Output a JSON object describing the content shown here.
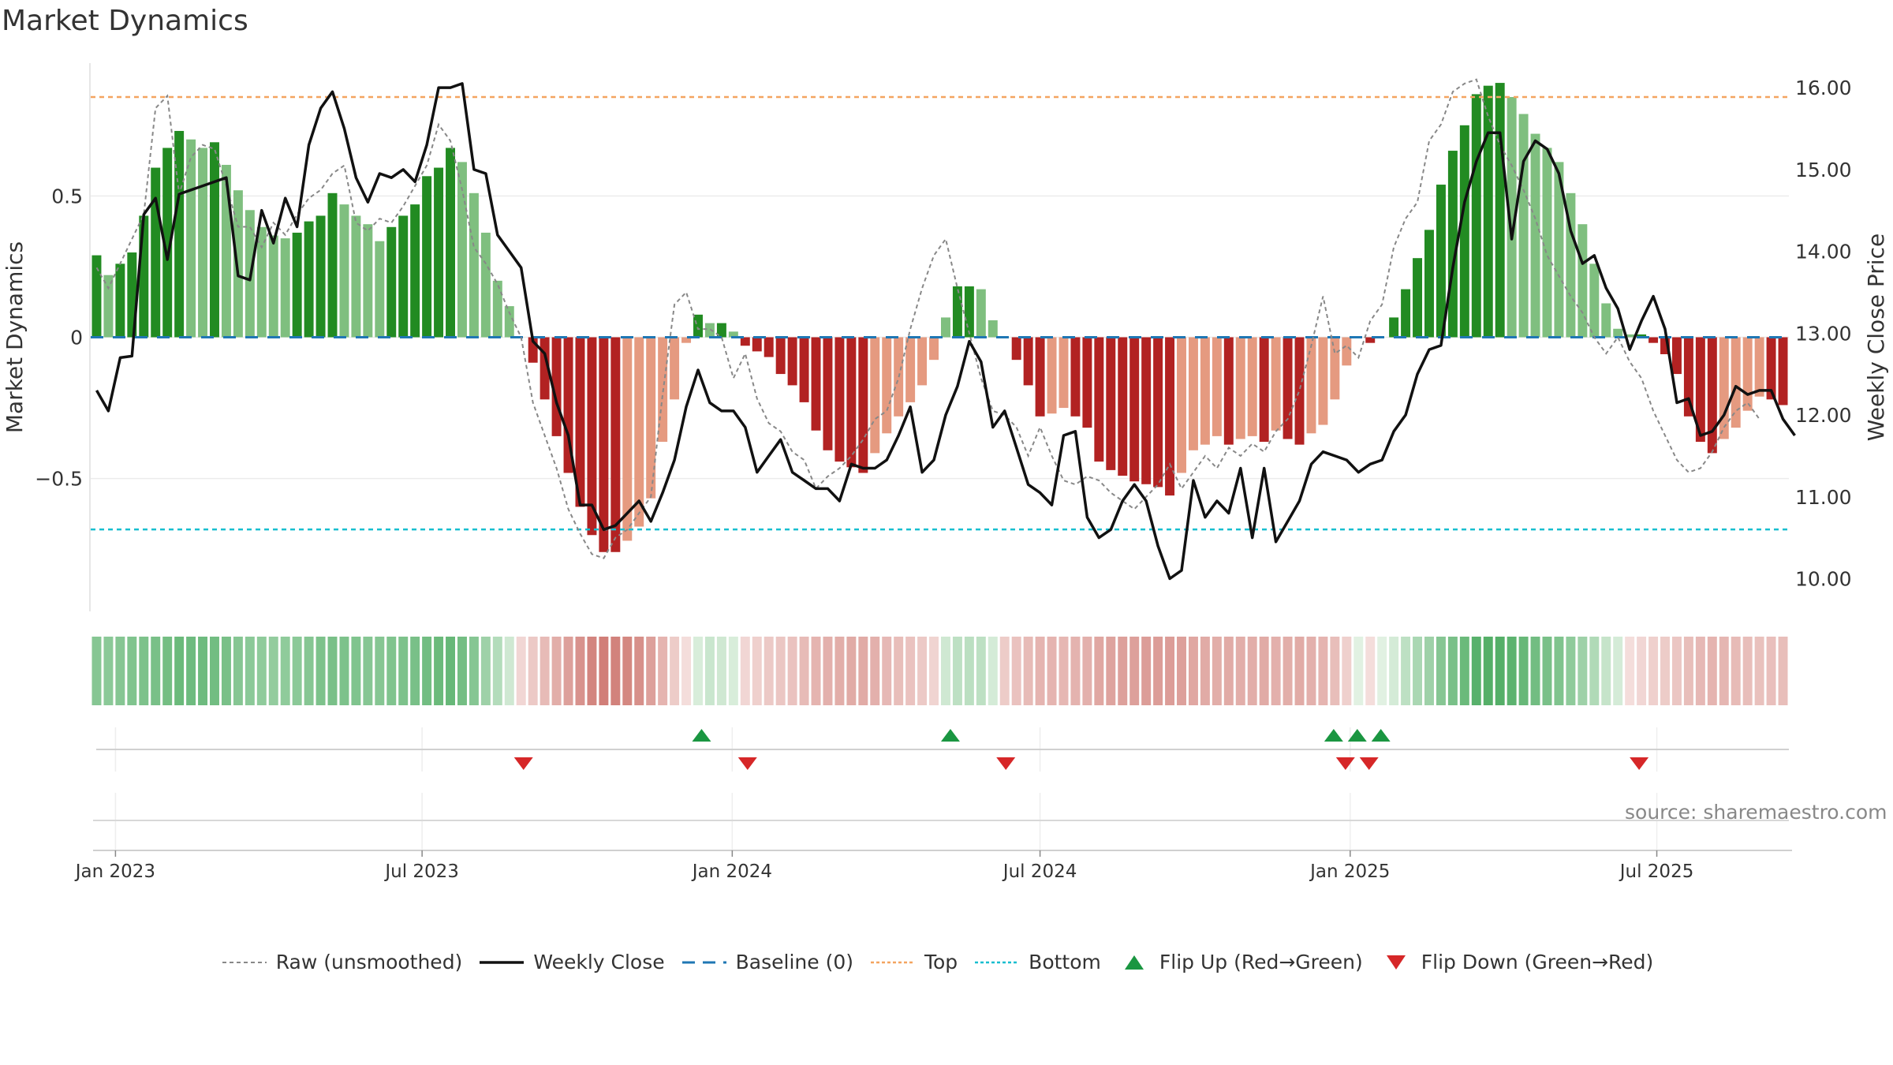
{
  "title": "Market Dynamics",
  "source": "source: sharemaestro.com",
  "colors": {
    "strong_green": "#228b22",
    "light_green": "#7fbf7f",
    "strong_red": "#b22222",
    "light_red": "#e59a80",
    "top": "#f4a460",
    "bottom": "#17becf",
    "baseline": "#1f77b4",
    "flip_up": "#1a9641",
    "flip_down": "#d62728"
  },
  "legend": [
    {
      "key": "raw",
      "label": "Raw (unsmoothed)"
    },
    {
      "key": "close",
      "label": "Weekly Close"
    },
    {
      "key": "baseline",
      "label": "Baseline (0)"
    },
    {
      "key": "top",
      "label": "Top"
    },
    {
      "key": "bottom",
      "label": "Bottom"
    },
    {
      "key": "flipup",
      "label": "Flip Up (Red→Green)"
    },
    {
      "key": "flipdown",
      "label": "Flip Down (Green→Red)"
    }
  ],
  "chart_data": {
    "type": "bar",
    "ylabel": "Market Dynamics",
    "y2label": "Weekly Close Price",
    "ylim": [
      -0.97,
      0.97
    ],
    "y2lim": [
      9.6,
      16.3
    ],
    "yticks": [
      {
        "v": 0.5,
        "label": "0.5"
      },
      {
        "v": 0,
        "label": "0"
      },
      {
        "v": -0.5,
        "label": "−0.5"
      }
    ],
    "y2ticks": [
      {
        "v": 16,
        "label": "16.00"
      },
      {
        "v": 15,
        "label": "15.00"
      },
      {
        "v": 14,
        "label": "14.00"
      },
      {
        "v": 13,
        "label": "13.00"
      },
      {
        "v": 12,
        "label": "12.00"
      },
      {
        "v": 11,
        "label": "11.00"
      },
      {
        "v": 10,
        "label": "10.00"
      }
    ],
    "xticks": [
      {
        "i": 1.6,
        "label": "Jan 2023"
      },
      {
        "i": 27.6,
        "label": "Jul 2023"
      },
      {
        "i": 53.9,
        "label": "Jan 2024"
      },
      {
        "i": 80.0,
        "label": "Jul 2024"
      },
      {
        "i": 106.3,
        "label": "Jan 2025"
      },
      {
        "i": 132.3,
        "label": "Jul 2025"
      }
    ],
    "top": 0.85,
    "bottom": -0.68,
    "baseline": 0,
    "bars": [
      0.29,
      0.22,
      0.26,
      0.3,
      0.43,
      0.6,
      0.67,
      0.73,
      0.7,
      0.67,
      0.69,
      0.61,
      0.52,
      0.45,
      0.39,
      0.36,
      0.35,
      0.37,
      0.41,
      0.43,
      0.51,
      0.47,
      0.43,
      0.4,
      0.34,
      0.39,
      0.43,
      0.47,
      0.57,
      0.6,
      0.67,
      0.62,
      0.51,
      0.37,
      0.2,
      0.11,
      0.0,
      -0.09,
      -0.22,
      -0.35,
      -0.48,
      -0.6,
      -0.7,
      -0.76,
      -0.76,
      -0.72,
      -0.67,
      -0.57,
      -0.37,
      -0.22,
      -0.02,
      0.08,
      0.05,
      0.05,
      0.02,
      -0.03,
      -0.05,
      -0.07,
      -0.13,
      -0.17,
      -0.23,
      -0.33,
      -0.4,
      -0.44,
      -0.46,
      -0.48,
      -0.41,
      -0.34,
      -0.28,
      -0.23,
      -0.17,
      -0.08,
      0.07,
      0.18,
      0.18,
      0.17,
      0.06,
      0.0,
      -0.08,
      -0.17,
      -0.28,
      -0.27,
      -0.25,
      -0.28,
      -0.32,
      -0.44,
      -0.47,
      -0.49,
      -0.51,
      -0.52,
      -0.53,
      -0.56,
      -0.48,
      -0.4,
      -0.38,
      -0.35,
      -0.38,
      -0.36,
      -0.35,
      -0.37,
      -0.33,
      -0.36,
      -0.38,
      -0.34,
      -0.31,
      -0.22,
      -0.1,
      0.0,
      -0.02,
      0.0,
      0.07,
      0.17,
      0.28,
      0.38,
      0.54,
      0.66,
      0.75,
      0.86,
      0.89,
      0.9,
      0.85,
      0.79,
      0.72,
      0.67,
      0.62,
      0.51,
      0.4,
      0.26,
      0.12,
      0.03,
      0.01,
      0.01,
      -0.02,
      -0.06,
      -0.13,
      -0.28,
      -0.37,
      -0.41,
      -0.36,
      -0.32,
      -0.26,
      -0.21,
      -0.22,
      -0.24
    ],
    "close": [
      12.3,
      12.05,
      12.7,
      12.72,
      14.45,
      14.65,
      13.9,
      14.7,
      14.75,
      14.8,
      14.85,
      14.9,
      13.7,
      13.65,
      14.5,
      14.1,
      14.65,
      14.3,
      15.3,
      15.75,
      15.95,
      15.5,
      14.9,
      14.6,
      14.95,
      14.9,
      15.0,
      14.85,
      15.3,
      16.0,
      16.0,
      16.05,
      15.0,
      14.95,
      14.2,
      14.0,
      13.8,
      12.9,
      12.75,
      12.15,
      11.75,
      10.9,
      10.9,
      10.6,
      10.65,
      10.8,
      10.95,
      10.7,
      11.05,
      11.45,
      12.1,
      12.55,
      12.15,
      12.05,
      12.05,
      11.85,
      11.3,
      11.5,
      11.7,
      11.3,
      11.2,
      11.1,
      11.1,
      10.95,
      11.4,
      11.35,
      11.35,
      11.45,
      11.75,
      12.1,
      11.3,
      11.45,
      12.0,
      12.35,
      12.9,
      12.65,
      11.85,
      12.05,
      11.6,
      11.15,
      11.05,
      10.9,
      11.75,
      11.8,
      10.75,
      10.5,
      10.6,
      10.95,
      11.15,
      10.95,
      10.4,
      10.0,
      10.1,
      11.2,
      10.75,
      10.95,
      10.8,
      11.35,
      10.5,
      11.35,
      10.45,
      10.7,
      10.95,
      11.4,
      11.55,
      11.5,
      11.45,
      11.3,
      11.4,
      11.45,
      11.8,
      12.0,
      12.5,
      12.8,
      12.85,
      13.8,
      14.6,
      15.1,
      15.45,
      15.45,
      14.15,
      15.1,
      15.35,
      15.25,
      14.95,
      14.25,
      13.85,
      13.95,
      13.55,
      13.3,
      12.8,
      13.15,
      13.45,
      13.05,
      12.15,
      12.2,
      11.75,
      11.8,
      12.0,
      12.35,
      12.25,
      12.3,
      12.3,
      11.95,
      11.75
    ],
    "raw": [
      13.8,
      13.55,
      13.85,
      14.15,
      14.45,
      15.75,
      15.9,
      14.7,
      15.15,
      15.3,
      15.25,
      14.8,
      14.3,
      14.3,
      14.05,
      14.35,
      14.2,
      14.45,
      14.65,
      14.75,
      14.95,
      15.05,
      14.35,
      14.25,
      14.4,
      14.35,
      14.55,
      14.8,
      15.05,
      15.55,
      15.35,
      14.75,
      14.05,
      13.85,
      13.6,
      13.25,
      12.95,
      12.15,
      11.75,
      11.35,
      10.85,
      10.55,
      10.3,
      10.25,
      10.5,
      10.6,
      10.8,
      11.0,
      12.25,
      13.35,
      13.5,
      13.05,
      13.05,
      12.95,
      12.45,
      12.75,
      12.2,
      11.9,
      11.8,
      11.55,
      11.45,
      11.1,
      11.25,
      11.35,
      11.5,
      11.7,
      11.95,
      12.05,
      12.45,
      13.05,
      13.55,
      13.95,
      14.15,
      13.55,
      13.0,
      12.45,
      12.05,
      12.0,
      11.85,
      11.5,
      11.85,
      11.5,
      11.2,
      11.15,
      11.25,
      11.2,
      11.05,
      10.95,
      10.85,
      11.0,
      11.15,
      11.4,
      11.1,
      11.3,
      11.5,
      11.35,
      11.6,
      11.5,
      11.65,
      11.55,
      11.8,
      11.95,
      12.3,
      12.85,
      13.45,
      12.75,
      12.85,
      12.7,
      13.15,
      13.35,
      14.05,
      14.4,
      14.6,
      15.35,
      15.55,
      15.95,
      16.05,
      16.1,
      15.65,
      15.3,
      15.05,
      14.75,
      14.4,
      13.95,
      13.7,
      13.45,
      13.25,
      12.95,
      12.75,
      12.95,
      12.65,
      12.45,
      12.05,
      11.75,
      11.45,
      11.3,
      11.35,
      11.55,
      11.85,
      12.05,
      12.15,
      11.95
    ],
    "heat": [
      0.55,
      0.52,
      0.55,
      0.58,
      0.6,
      0.62,
      0.65,
      0.7,
      0.68,
      0.68,
      0.66,
      0.62,
      0.55,
      0.52,
      0.5,
      0.48,
      0.5,
      0.52,
      0.55,
      0.6,
      0.62,
      0.6,
      0.58,
      0.55,
      0.55,
      0.58,
      0.6,
      0.62,
      0.66,
      0.7,
      0.72,
      0.65,
      0.55,
      0.42,
      0.3,
      0.15,
      -0.1,
      -0.2,
      -0.3,
      -0.4,
      -0.5,
      -0.6,
      -0.7,
      -0.75,
      -0.72,
      -0.68,
      -0.62,
      -0.5,
      -0.35,
      -0.18,
      -0.05,
      0.1,
      0.18,
      0.15,
      0.1,
      -0.1,
      -0.15,
      -0.2,
      -0.22,
      -0.25,
      -0.3,
      -0.35,
      -0.38,
      -0.4,
      -0.42,
      -0.42,
      -0.38,
      -0.32,
      -0.28,
      -0.25,
      -0.2,
      -0.12,
      0.15,
      0.25,
      0.26,
      0.25,
      0.12,
      -0.18,
      -0.25,
      -0.3,
      -0.35,
      -0.35,
      -0.33,
      -0.36,
      -0.38,
      -0.45,
      -0.48,
      -0.5,
      -0.5,
      -0.52,
      -0.52,
      -0.52,
      -0.5,
      -0.45,
      -0.42,
      -0.4,
      -0.42,
      -0.4,
      -0.4,
      -0.42,
      -0.38,
      -0.4,
      -0.42,
      -0.38,
      -0.35,
      -0.28,
      -0.15,
      0.05,
      -0.05,
      0.05,
      0.12,
      0.25,
      0.35,
      0.42,
      0.55,
      0.62,
      0.7,
      0.8,
      0.82,
      0.82,
      0.78,
      0.72,
      0.66,
      0.62,
      0.58,
      0.5,
      0.42,
      0.32,
      0.2,
      0.12,
      -0.05,
      -0.1,
      -0.15,
      -0.18,
      -0.22,
      -0.28,
      -0.32,
      -0.35,
      -0.34,
      -0.3,
      -0.28,
      -0.26,
      -0.27,
      -0.28
    ],
    "flips_up": [
      51.3,
      72.4,
      104.9,
      106.9,
      108.9
    ],
    "flips_down": [
      36.2,
      55.2,
      77.1,
      105.9,
      107.9,
      130.8
    ]
  }
}
